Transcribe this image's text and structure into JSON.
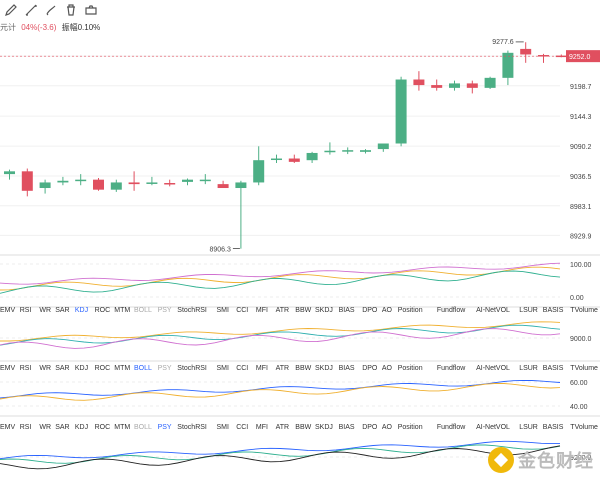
{
  "toolbar": {
    "icons": [
      "pencil-icon",
      "line-draw-icon",
      "brush-icon",
      "trash-icon",
      "camera-icon"
    ]
  },
  "info": {
    "unit_label": "元计",
    "change_text": "04%(-3.6)",
    "amplitude_label": "振幅",
    "amplitude_value": "0.10%"
  },
  "colors": {
    "up": "#4caf85",
    "down": "#e04f5f",
    "price_tag_bg": "#e04f5f"
  },
  "chart_data": {
    "type": "candlestick",
    "price_axis": {
      "ticks": [
        "9252.0",
        "9198.7",
        "9144.3",
        "9090.2",
        "9036.5",
        "8983.1",
        "8929.9"
      ],
      "current_price": "9252.0",
      "range": [
        8900,
        9290
      ]
    },
    "annotations": {
      "high": "9277.6",
      "low": "8906.3"
    },
    "candles": [
      {
        "o": 9040,
        "h": 9048,
        "l": 9030,
        "c": 9045
      },
      {
        "o": 9045,
        "h": 9050,
        "l": 9000,
        "c": 9010
      },
      {
        "o": 9015,
        "h": 9030,
        "l": 9005,
        "c": 9025
      },
      {
        "o": 9025,
        "h": 9035,
        "l": 9020,
        "c": 9028
      },
      {
        "o": 9028,
        "h": 9040,
        "l": 9020,
        "c": 9030
      },
      {
        "o": 9030,
        "h": 9033,
        "l": 9010,
        "c": 9012
      },
      {
        "o": 9012,
        "h": 9030,
        "l": 9008,
        "c": 9025
      },
      {
        "o": 9025,
        "h": 9045,
        "l": 9010,
        "c": 9022
      },
      {
        "o": 9024,
        "h": 9035,
        "l": 9020,
        "c": 9025
      },
      {
        "o": 9024,
        "h": 9030,
        "l": 9018,
        "c": 9022
      },
      {
        "o": 9026,
        "h": 9032,
        "l": 9020,
        "c": 9030
      },
      {
        "o": 9028,
        "h": 9040,
        "l": 9022,
        "c": 9030
      },
      {
        "o": 9022,
        "h": 9028,
        "l": 9015,
        "c": 9015
      },
      {
        "o": 9015,
        "h": 9028,
        "l": 8906,
        "c": 9025
      },
      {
        "o": 9025,
        "h": 9090,
        "l": 9020,
        "c": 9065
      },
      {
        "o": 9067,
        "h": 9075,
        "l": 9060,
        "c": 9068
      },
      {
        "o": 9068,
        "h": 9075,
        "l": 9060,
        "c": 9062
      },
      {
        "o": 9065,
        "h": 9080,
        "l": 9060,
        "c": 9078
      },
      {
        "o": 9080,
        "h": 9097,
        "l": 9075,
        "c": 9082
      },
      {
        "o": 9082,
        "h": 9088,
        "l": 9076,
        "c": 9083
      },
      {
        "o": 9080,
        "h": 9085,
        "l": 9077,
        "c": 9083
      },
      {
        "o": 9085,
        "h": 9095,
        "l": 9080,
        "c": 9095
      },
      {
        "o": 9095,
        "h": 9215,
        "l": 9090,
        "c": 9210
      },
      {
        "o": 9210,
        "h": 9225,
        "l": 9190,
        "c": 9200
      },
      {
        "o": 9200,
        "h": 9210,
        "l": 9190,
        "c": 9195
      },
      {
        "o": 9195,
        "h": 9208,
        "l": 9190,
        "c": 9203
      },
      {
        "o": 9203,
        "h": 9208,
        "l": 9185,
        "c": 9195
      },
      {
        "o": 9195,
        "h": 9215,
        "l": 9193,
        "c": 9213
      },
      {
        "o": 9213,
        "h": 9262,
        "l": 9200,
        "c": 9258
      },
      {
        "o": 9265,
        "h": 9277,
        "l": 9240,
        "c": 9255
      },
      {
        "o": 9254,
        "h": 9256,
        "l": 9240,
        "c": 9253
      },
      {
        "o": 9253,
        "h": 9255,
        "l": 9250,
        "c": 9252
      }
    ],
    "indicator_tabs": [
      "EMV",
      "RSI",
      "WR",
      "SAR",
      "KDJ",
      "ROC",
      "MTM",
      "BOLL",
      "PSY",
      "StochRSI",
      "SMI",
      "CCI",
      "MFI",
      "ATR",
      "BBW",
      "SKDJ",
      "BIAS",
      "DPO",
      "AO",
      "Position",
      "Fundflow",
      "AI-NetVOL",
      "LSUR",
      "BASIS",
      "TVolume"
    ],
    "panels": [
      {
        "ticks": [
          "100.00",
          "0.00"
        ],
        "active_tab": "KDJ"
      },
      {
        "ticks": [
          "9000.0"
        ],
        "active_tab": "BOLL"
      },
      {
        "ticks": [
          "60.00",
          "40.00"
        ],
        "active_tab": "PSY"
      },
      {
        "ticks": [
          "9200.0"
        ],
        "active_tab": ""
      }
    ]
  },
  "watermark": {
    "text": "金色财经"
  }
}
